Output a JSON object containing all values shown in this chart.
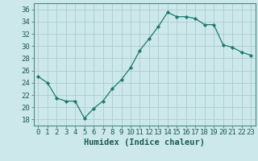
{
  "x": [
    0,
    1,
    2,
    3,
    4,
    5,
    6,
    7,
    8,
    9,
    10,
    11,
    12,
    13,
    14,
    15,
    16,
    17,
    18,
    19,
    20,
    21,
    22,
    23
  ],
  "y": [
    25,
    24,
    21.5,
    21,
    21,
    18.2,
    19.8,
    21,
    23,
    24.5,
    26.5,
    29.3,
    31.2,
    33.2,
    35.5,
    34.8,
    34.8,
    34.5,
    33.5,
    33.5,
    30.2,
    29.8,
    29,
    28.5
  ],
  "line_color": "#1a7a6e",
  "marker": "D",
  "marker_size": 2.2,
  "bg_color": "#cde8ea",
  "grid_color": "#b0d0d4",
  "xlabel": "Humidex (Indice chaleur)",
  "ylim": [
    17,
    37
  ],
  "xlim": [
    -0.5,
    23.5
  ],
  "yticks": [
    18,
    20,
    22,
    24,
    26,
    28,
    30,
    32,
    34,
    36
  ],
  "xticks": [
    0,
    1,
    2,
    3,
    4,
    5,
    6,
    7,
    8,
    9,
    10,
    11,
    12,
    13,
    14,
    15,
    16,
    17,
    18,
    19,
    20,
    21,
    22,
    23
  ],
  "tick_fontsize": 6.5,
  "xlabel_fontsize": 7.5
}
